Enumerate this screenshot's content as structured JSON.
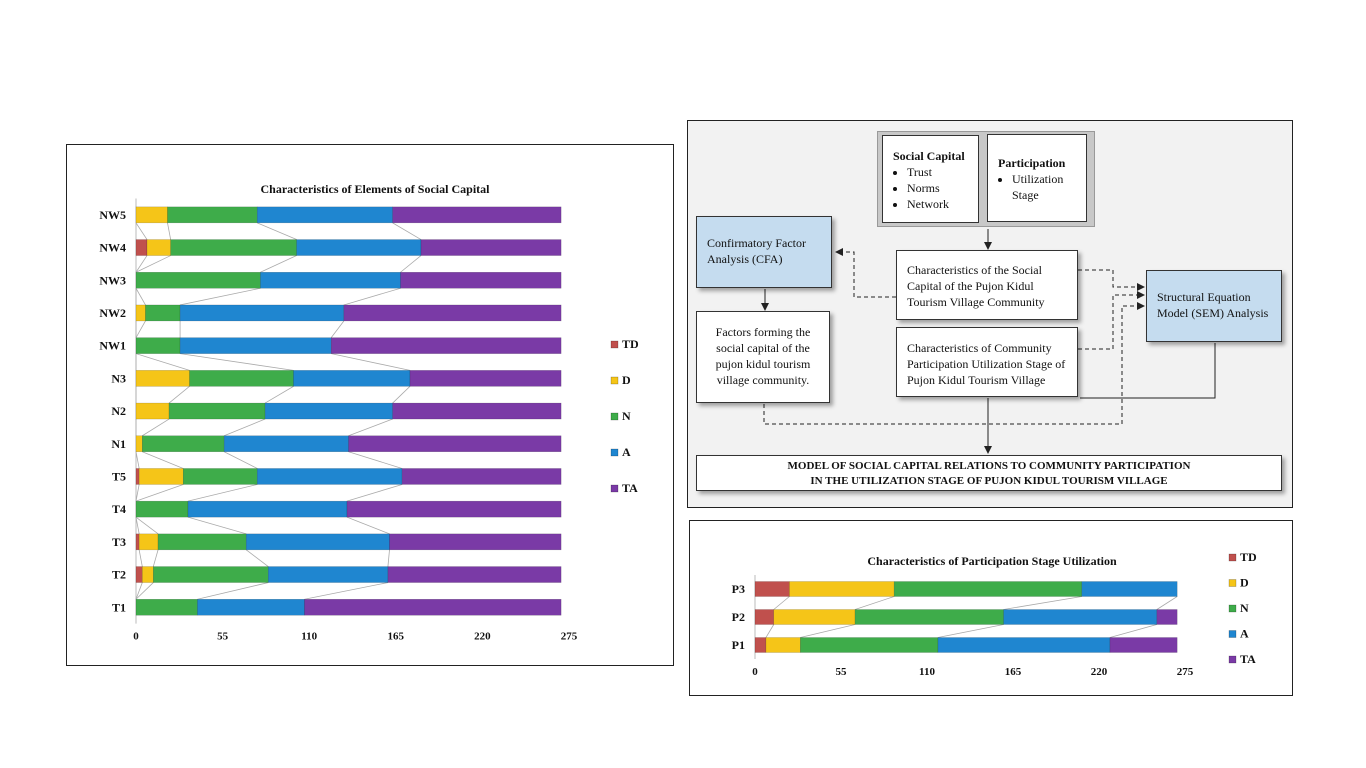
{
  "colors": {
    "TD": "#c0504d",
    "D": "#f5c518",
    "N": "#3eac4a",
    "A": "#1f86d0",
    "TA": "#7a3aa6"
  },
  "chart_data": [
    {
      "type": "bar",
      "orientation": "horizontal",
      "stacked": true,
      "title": "Characteristics of Elements of Social Capital",
      "categories": [
        "NW5",
        "NW4",
        "NW3",
        "NW2",
        "NW1",
        "N3",
        "N2",
        "N1",
        "T5",
        "T4",
        "T3",
        "T2",
        "T1"
      ],
      "series": [
        {
          "name": "TD",
          "values": [
            0,
            7,
            0,
            0,
            0,
            0,
            0,
            0,
            2,
            0,
            2,
            4,
            0
          ]
        },
        {
          "name": "D",
          "values": [
            20,
            15,
            0,
            6,
            0,
            34,
            21,
            4,
            28,
            0,
            12,
            7,
            0
          ]
        },
        {
          "name": "N",
          "values": [
            57,
            80,
            79,
            22,
            28,
            66,
            61,
            52,
            47,
            33,
            56,
            73,
            39
          ]
        },
        {
          "name": "A",
          "values": [
            86,
            79,
            89,
            104,
            96,
            74,
            81,
            79,
            92,
            101,
            91,
            76,
            68
          ]
        },
        {
          "name": "TA",
          "values": [
            107,
            89,
            102,
            138,
            146,
            96,
            107,
            135,
            101,
            136,
            109,
            110,
            163
          ]
        }
      ],
      "xlim": [
        0,
        275
      ],
      "xticks": [
        "0",
        "55",
        "110",
        "165",
        "220",
        "275"
      ],
      "legend": "right"
    },
    {
      "type": "bar",
      "orientation": "horizontal",
      "stacked": true,
      "title": "Characteristics of Participation Stage Utilization",
      "categories": [
        "P3",
        "P2",
        "P1"
      ],
      "series": [
        {
          "name": "TD",
          "values": [
            22,
            12,
            7
          ]
        },
        {
          "name": "D",
          "values": [
            67,
            52,
            22
          ]
        },
        {
          "name": "N",
          "values": [
            120,
            95,
            88
          ]
        },
        {
          "name": "A",
          "values": [
            61,
            98,
            110
          ]
        },
        {
          "name": "TA",
          "values": [
            0,
            13,
            43
          ]
        }
      ],
      "xlim": [
        0,
        275
      ],
      "xticks": [
        "0",
        "55",
        "110",
        "165",
        "220",
        "275"
      ],
      "legend": "right"
    }
  ],
  "diagram": {
    "social_capital": {
      "title": "Social Capital",
      "items": [
        "Trust",
        "Norms",
        "Network"
      ]
    },
    "participation": {
      "title": "Participation",
      "items": [
        "Utilization Stage"
      ]
    },
    "cfa": "Confirmatory Factor Analysis (CFA)",
    "sc_characteristics": "Characteristics of the Social Capital of the Pujon Kidul Tourism Village Community",
    "part_characteristics": "Characteristics of Community Participation Utilization Stage of Pujon Kidul Tourism Village",
    "factors": "Factors forming the social capital of the pujon kidul tourism village community.",
    "sem": "Structural Equation Model (SEM) Analysis",
    "model_line1": "MODEL OF SOCIAL CAPITAL RELATIONS TO COMMUNITY PARTICIPATION",
    "model_line2": "IN THE UTILIZATION STAGE OF PUJON KIDUL TOURISM VILLAGE"
  }
}
